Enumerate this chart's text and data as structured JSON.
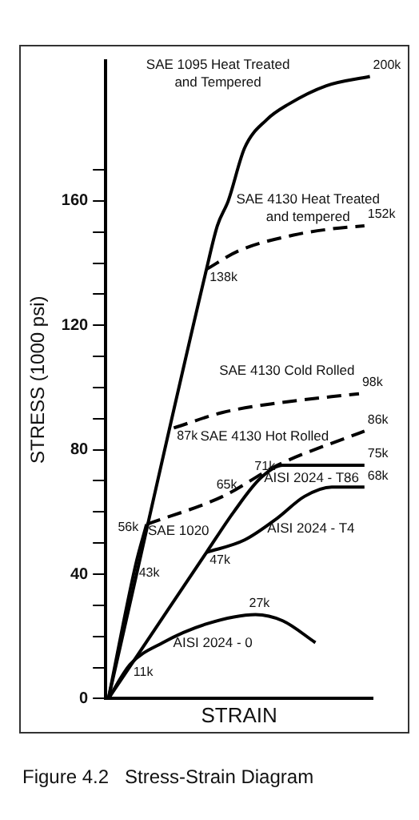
{
  "chart_data": {
    "type": "line",
    "categories": [
      null,
      null,
      null,
      null,
      null,
      null,
      null,
      null,
      null,
      null,
      null,
      null,
      null,
      null,
      null,
      null,
      null,
      null,
      null,
      null,
      null,
      null,
      null,
      null,
      null,
      null,
      null,
      null,
      null,
      null,
      null,
      null,
      null,
      null,
      null,
      null,
      null,
      null,
      null,
      null,
      null,
      null,
      null,
      null,
      null,
      null,
      null,
      null,
      null
    ],
    "ylabel": "STRESS (1000 psi)",
    "xlabel": "STRAIN",
    "ylim": [
      0,
      205
    ],
    "yticks": [
      0,
      {
        "value": 10,
        "label": null
      },
      {
        "value": 20,
        "label": null
      },
      {
        "value": 30,
        "label": null
      },
      40,
      {
        "value": 50,
        "label": null
      },
      {
        "value": 60,
        "label": null
      },
      {
        "value": 70,
        "label": null
      },
      80,
      {
        "value": 90,
        "label": null
      },
      {
        "value": 100,
        "label": null
      },
      {
        "value": 110,
        "label": null
      },
      120,
      {
        "value": 130,
        "label": null
      },
      {
        "value": 140,
        "label": null
      },
      {
        "value": 150,
        "label": null
      },
      160,
      {
        "value": 170,
        "label": null
      }
    ],
    "grid": false,
    "legend": false,
    "marker": "none",
    "annotations": [
      "Figure 4.2   Stress-Strain Diagram"
    ],
    "series": [
      {
        "name": "SAE 1095 Heat Treated and Tempered",
        "color": "#000000",
        "line_style": "solid",
        "values": [
          0,
          null,
          null,
          null,
          null,
          null,
          null,
          null,
          null,
          null,
          null,
          null,
          null,
          null,
          null,
          null,
          null,
          null,
          138,
          null,
          152,
          null,
          160,
          null,
          null,
          177,
          null,
          null,
          null,
          186,
          null,
          null,
          null,
          191,
          null,
          null,
          null,
          null,
          null,
          null,
          197,
          null,
          null,
          null,
          null,
          null,
          null,
          null,
          200
        ],
        "value_labels": [
          null,
          null,
          null,
          null,
          null,
          null,
          null,
          null,
          null,
          null,
          null,
          null,
          null,
          null,
          null,
          null,
          null,
          null,
          null,
          null,
          null,
          null,
          null,
          null,
          null,
          null,
          null,
          null,
          null,
          null,
          null,
          null,
          null,
          null,
          null,
          null,
          null,
          null,
          null,
          null,
          null,
          null,
          null,
          null,
          null,
          null,
          null,
          null,
          "200k"
        ]
      },
      {
        "name": "SAE 4130 Heat Treated and tempered",
        "color": "#000000",
        "line_style": "dashed",
        "values": [
          null,
          null,
          null,
          null,
          null,
          null,
          null,
          null,
          null,
          null,
          null,
          null,
          null,
          null,
          null,
          null,
          null,
          null,
          138,
          null,
          null,
          null,
          null,
          null,
          144,
          null,
          null,
          null,
          null,
          null,
          null,
          null,
          null,
          null,
          149,
          null,
          null,
          null,
          null,
          null,
          null,
          151,
          null,
          null,
          null,
          null,
          null,
          152,
          null
        ],
        "value_labels": [
          null,
          null,
          null,
          null,
          null,
          null,
          null,
          null,
          null,
          null,
          null,
          null,
          null,
          null,
          null,
          null,
          null,
          null,
          "138k",
          null,
          null,
          null,
          null,
          null,
          null,
          null,
          null,
          null,
          null,
          null,
          null,
          null,
          null,
          null,
          null,
          null,
          null,
          null,
          null,
          null,
          null,
          null,
          null,
          null,
          null,
          null,
          null,
          "152k",
          null
        ]
      },
      {
        "name": "SAE 4130 Cold Rolled",
        "color": "#000000",
        "line_style": "dashed",
        "values": [
          null,
          null,
          null,
          null,
          null,
          null,
          null,
          null,
          null,
          null,
          null,
          null,
          87,
          null,
          null,
          null,
          null,
          null,
          null,
          null,
          null,
          92,
          null,
          null,
          null,
          null,
          null,
          null,
          null,
          null,
          null,
          95,
          null,
          null,
          null,
          null,
          null,
          null,
          null,
          null,
          null,
          null,
          null,
          null,
          null,
          null,
          98,
          null,
          null
        ],
        "value_labels": [
          null,
          null,
          null,
          null,
          null,
          null,
          null,
          null,
          null,
          null,
          null,
          null,
          "87k",
          null,
          null,
          null,
          null,
          null,
          null,
          null,
          null,
          null,
          null,
          null,
          null,
          null,
          null,
          null,
          null,
          null,
          null,
          null,
          null,
          null,
          null,
          null,
          null,
          null,
          null,
          null,
          null,
          null,
          null,
          null,
          null,
          null,
          "98k",
          null,
          null
        ]
      },
      {
        "name": "SAE 4130 Hot Rolled",
        "color": "#000000",
        "line_style": "dashed",
        "values": [
          null,
          null,
          null,
          null,
          null,
          null,
          null,
          56,
          null,
          null,
          null,
          null,
          null,
          null,
          null,
          null,
          null,
          null,
          null,
          null,
          null,
          65,
          null,
          null,
          null,
          null,
          null,
          null,
          null,
          null,
          null,
          75,
          null,
          null,
          null,
          null,
          null,
          null,
          null,
          null,
          null,
          null,
          null,
          null,
          null,
          null,
          null,
          86,
          null
        ],
        "value_labels": [
          null,
          null,
          null,
          null,
          null,
          null,
          null,
          "56k",
          null,
          null,
          null,
          null,
          null,
          null,
          null,
          null,
          null,
          null,
          null,
          null,
          null,
          "65k",
          null,
          null,
          null,
          null,
          null,
          null,
          null,
          null,
          null,
          null,
          null,
          null,
          null,
          null,
          null,
          null,
          null,
          null,
          null,
          null,
          null,
          null,
          null,
          null,
          null,
          "86k",
          null
        ]
      },
      {
        "name": "SAE 1020",
        "color": "#000000",
        "line_style": "solid",
        "values": [
          0,
          null,
          null,
          null,
          null,
          43,
          null,
          56,
          null,
          null,
          null,
          null,
          null,
          null,
          null,
          null,
          null,
          null,
          null,
          null,
          null,
          null,
          null,
          null,
          null,
          null,
          null,
          null,
          null,
          null,
          null,
          null,
          null,
          null,
          null,
          null,
          null,
          null,
          null,
          null,
          null,
          null,
          null,
          null,
          null,
          null,
          null,
          null,
          null
        ],
        "value_labels": [
          null,
          null,
          null,
          null,
          null,
          "43k",
          null,
          null,
          null,
          null,
          null,
          null,
          null,
          null,
          null,
          null,
          null,
          null,
          null,
          null,
          null,
          null,
          null,
          null,
          null,
          null,
          null,
          null,
          null,
          null,
          null,
          null,
          null,
          null,
          null,
          null,
          null,
          null,
          null,
          null,
          null,
          null,
          null,
          null,
          null,
          null,
          null,
          null,
          null
        ]
      },
      {
        "name": "AISI 2024 - T86",
        "color": "#000000",
        "line_style": "solid",
        "values": [
          0,
          null,
          null,
          null,
          null,
          null,
          null,
          null,
          null,
          null,
          null,
          null,
          null,
          null,
          null,
          null,
          null,
          null,
          47,
          null,
          null,
          null,
          null,
          60,
          null,
          null,
          null,
          null,
          71,
          null,
          null,
          null,
          75,
          null,
          null,
          null,
          null,
          null,
          null,
          null,
          null,
          null,
          null,
          null,
          null,
          null,
          null,
          75,
          null
        ],
        "value_labels": [
          null,
          null,
          null,
          null,
          null,
          null,
          null,
          null,
          null,
          null,
          null,
          null,
          null,
          null,
          null,
          null,
          null,
          null,
          null,
          null,
          null,
          null,
          null,
          null,
          null,
          null,
          null,
          null,
          "71k",
          null,
          null,
          null,
          null,
          null,
          null,
          null,
          null,
          null,
          null,
          null,
          null,
          null,
          null,
          null,
          null,
          null,
          null,
          "75k",
          null
        ]
      },
      {
        "name": "AISI 2024 - T4",
        "color": "#000000",
        "line_style": "solid",
        "values": [
          null,
          null,
          null,
          null,
          null,
          null,
          null,
          null,
          null,
          null,
          null,
          null,
          null,
          null,
          null,
          null,
          null,
          null,
          47,
          null,
          null,
          null,
          null,
          null,
          null,
          51,
          null,
          null,
          null,
          null,
          null,
          58,
          null,
          null,
          null,
          null,
          65,
          null,
          null,
          null,
          null,
          68,
          null,
          null,
          null,
          null,
          null,
          68,
          null
        ],
        "value_labels": [
          null,
          null,
          null,
          null,
          null,
          null,
          null,
          null,
          null,
          null,
          null,
          null,
          null,
          null,
          null,
          null,
          null,
          null,
          "47k",
          null,
          null,
          null,
          null,
          null,
          null,
          null,
          null,
          null,
          null,
          null,
          null,
          null,
          null,
          null,
          null,
          null,
          null,
          null,
          null,
          null,
          null,
          null,
          null,
          null,
          null,
          null,
          null,
          "68k",
          null
        ]
      },
      {
        "name": "AISI 2024 - 0",
        "color": "#000000",
        "line_style": "solid",
        "values": [
          0,
          null,
          null,
          null,
          11,
          null,
          null,
          null,
          null,
          null,
          18,
          null,
          null,
          null,
          null,
          null,
          null,
          null,
          24,
          null,
          null,
          null,
          null,
          null,
          null,
          null,
          null,
          27,
          null,
          null,
          null,
          null,
          25,
          null,
          null,
          null,
          null,
          null,
          18,
          null,
          null,
          null,
          null,
          null,
          null,
          null,
          null,
          null,
          null
        ],
        "value_labels": [
          null,
          null,
          null,
          null,
          "11k",
          null,
          null,
          null,
          null,
          null,
          null,
          null,
          null,
          null,
          null,
          null,
          null,
          null,
          null,
          null,
          null,
          null,
          null,
          null,
          null,
          null,
          null,
          "27k",
          null,
          null,
          null,
          null,
          null,
          null,
          null,
          null,
          null,
          null,
          null,
          null,
          null,
          null,
          null,
          null,
          null,
          null,
          null,
          null,
          null
        ]
      }
    ]
  }
}
